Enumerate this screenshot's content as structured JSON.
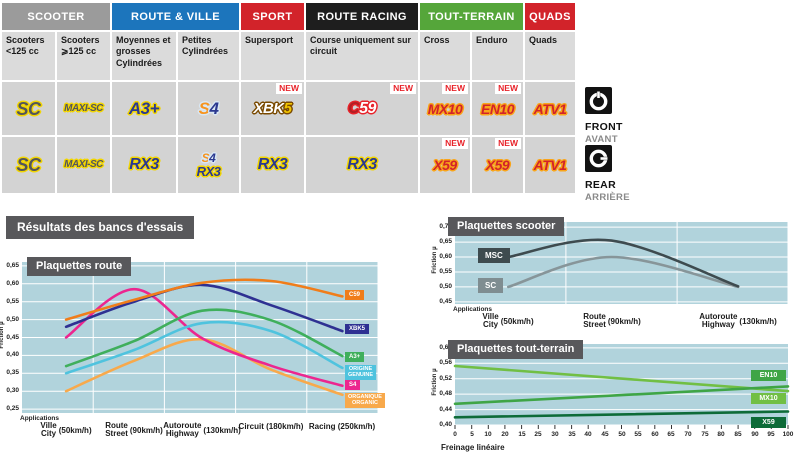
{
  "table": {
    "new_label": "NEW",
    "categories": [
      {
        "label": "SCOOTER",
        "color": "#9B9B9B"
      },
      {
        "label": "ROUTE & VILLE",
        "color": "#1C75BC"
      },
      {
        "label": "SPORT",
        "color": "#D2232A"
      },
      {
        "label": "ROUTE RACING",
        "color": "#1E1E1E"
      },
      {
        "label": "TOUT-TERRAIN",
        "color": "#55A63A"
      },
      {
        "label": "QUADS",
        "color": "#D2232A"
      }
    ],
    "subcategories": [
      "Scooters <125 cc",
      "Scooters ⩾125 cc",
      "Moyennes et grosses Cylindrées",
      "Petites Cylindrées",
      "Supersport",
      "Course uniquement sur circuit",
      "Cross",
      "Enduro",
      "Quads"
    ],
    "front_row": [
      {
        "new": false,
        "badges": [
          {
            "name": "SC",
            "size": 18,
            "outline": "#F2D500",
            "segments": [
              {
                "t": "SC",
                "c": "#54565A"
              }
            ]
          }
        ]
      },
      {
        "new": false,
        "badges": [
          {
            "name": "MAXI-SC",
            "size": 10,
            "outline": "#F2D500",
            "segments": [
              {
                "t": "MAXI-SC",
                "c": "#54565A"
              }
            ]
          }
        ]
      },
      {
        "new": false,
        "badges": [
          {
            "name": "A3+",
            "size": 17,
            "outline": "#F2D500",
            "segments": [
              {
                "t": "A3+",
                "c": "#2B3990"
              }
            ]
          }
        ]
      },
      {
        "new": false,
        "badges": [
          {
            "name": "S4",
            "size": 17,
            "outline": "#D8E7F4",
            "segments": [
              {
                "t": "S",
                "c": "#F7941E"
              },
              {
                "t": "4",
                "c": "#2B3990"
              }
            ]
          }
        ]
      },
      {
        "new": true,
        "badges": [
          {
            "name": "XBK5",
            "size": 15,
            "outline": "#7A4A00",
            "segments": [
              {
                "t": "XBK",
                "c": "#FFFFFF"
              },
              {
                "t": "5",
                "c": "#F2C500"
              }
            ]
          }
        ]
      },
      {
        "new": true,
        "badges": [
          {
            "name": "C59",
            "size": 16,
            "outline": "#E8232A",
            "segments": [
              {
                "t": "C",
                "c": "#B01F24"
              },
              {
                "t": "59",
                "c": "#FFFFFF"
              }
            ]
          }
        ]
      },
      {
        "new": true,
        "badges": [
          {
            "name": "MX10",
            "size": 14,
            "outline": "#F9A51A",
            "segments": [
              {
                "t": "MX10",
                "c": "#D2232A"
              }
            ]
          }
        ]
      },
      {
        "new": true,
        "badges": [
          {
            "name": "EN10",
            "size": 14,
            "outline": "#F9A51A",
            "segments": [
              {
                "t": "EN10",
                "c": "#D2232A"
              }
            ]
          }
        ]
      },
      {
        "new": false,
        "badges": [
          {
            "name": "ATV1",
            "size": 14,
            "outline": "#F9A51A",
            "segments": [
              {
                "t": "ATV1",
                "c": "#D2232A"
              }
            ]
          }
        ]
      }
    ],
    "rear_row": [
      {
        "new": false,
        "badges": [
          {
            "name": "SC",
            "size": 18,
            "outline": "#F2D500",
            "segments": [
              {
                "t": "SC",
                "c": "#54565A"
              }
            ]
          }
        ]
      },
      {
        "new": false,
        "badges": [
          {
            "name": "MAXI-SC",
            "size": 10,
            "outline": "#F2D500",
            "segments": [
              {
                "t": "MAXI-SC",
                "c": "#54565A"
              }
            ]
          }
        ]
      },
      {
        "new": false,
        "badges": [
          {
            "name": "RX3",
            "size": 16,
            "outline": "#F2D500",
            "segments": [
              {
                "t": "RX3",
                "c": "#2B3990"
              }
            ]
          }
        ]
      },
      {
        "new": false,
        "badges": [
          {
            "name": "S4",
            "size": 12,
            "outline": "#D8E7F4",
            "segments": [
              {
                "t": "S",
                "c": "#F7941E"
              },
              {
                "t": "4",
                "c": "#2B3990"
              }
            ]
          },
          {
            "name": "RX3",
            "size": 13,
            "outline": "#F2D500",
            "segments": [
              {
                "t": "RX3",
                "c": "#2B3990"
              }
            ]
          }
        ]
      },
      {
        "new": false,
        "badges": [
          {
            "name": "RX3",
            "size": 16,
            "outline": "#F2D500",
            "segments": [
              {
                "t": "RX3",
                "c": "#2B3990"
              }
            ]
          }
        ]
      },
      {
        "new": false,
        "badges": [
          {
            "name": "RX3",
            "size": 16,
            "outline": "#F2D500",
            "segments": [
              {
                "t": "RX3",
                "c": "#2B3990"
              }
            ]
          }
        ]
      },
      {
        "new": true,
        "badges": [
          {
            "name": "X59",
            "size": 14,
            "outline": "#F9A51A",
            "segments": [
              {
                "t": "X59",
                "c": "#D2232A"
              }
            ]
          }
        ]
      },
      {
        "new": true,
        "badges": [
          {
            "name": "X59",
            "size": 14,
            "outline": "#F9A51A",
            "segments": [
              {
                "t": "X59",
                "c": "#D2232A"
              }
            ]
          }
        ]
      },
      {
        "new": false,
        "badges": [
          {
            "name": "ATV1",
            "size": 14,
            "outline": "#F9A51A",
            "segments": [
              {
                "t": "ATV1",
                "c": "#D2232A"
              }
            ]
          }
        ]
      }
    ],
    "front": {
      "label": "FRONT",
      "sub": "AVANT"
    },
    "rear": {
      "label": "REAR",
      "sub": "ARRIÈRE"
    }
  },
  "results_title": "Résultats des bancs d'essais",
  "chart_data": [
    {
      "type": "line",
      "title": "Plaquettes route",
      "ylabel": "Friction µ",
      "x_axis_title": "Applications",
      "plot_bg": "#B1D3DC",
      "ylim": [
        0.239,
        0.661
      ],
      "yticks": [
        {
          "v": 0.65,
          "label": "0,65"
        },
        {
          "v": 0.6,
          "label": "0,60"
        },
        {
          "v": 0.55,
          "label": "0,55"
        },
        {
          "v": 0.5,
          "label": "0,50"
        },
        {
          "v": 0.45,
          "label": "0,45"
        },
        {
          "v": 0.4,
          "label": "0,40"
        },
        {
          "v": 0.35,
          "label": "0,35"
        },
        {
          "v": 0.3,
          "label": "0,30"
        },
        {
          "v": 0.25,
          "label": "0,25"
        }
      ],
      "categories": [
        {
          "fr": "Ville",
          "en": "City",
          "speed": "(50km/h)"
        },
        {
          "fr": "Route",
          "en": "Street",
          "speed": "(90km/h)"
        },
        {
          "fr": "Autoroute",
          "en": "Highway",
          "speed": "(130km/h)"
        },
        {
          "fr": "Circuit",
          "en": "",
          "speed": "(180km/h)"
        },
        {
          "fr": "Racing",
          "en": "",
          "speed": "(250km/h)"
        }
      ],
      "series": [
        {
          "name": "C59",
          "color": "#F07D1A",
          "values": [
            0.5,
            0.555,
            0.603,
            0.608,
            0.565
          ],
          "legend": {
            "lines": [
              "C59"
            ],
            "bg": "#F07D1A",
            "y": 0.565
          }
        },
        {
          "name": "XBK5",
          "color": "#2E3192",
          "values": [
            0.48,
            0.55,
            0.597,
            0.54,
            0.468
          ],
          "legend": {
            "lines": [
              "XBK5"
            ],
            "bg": "#2E3192",
            "y": 0.471
          }
        },
        {
          "name": "A3+",
          "color": "#3FAF5C",
          "values": [
            0.37,
            0.44,
            0.525,
            0.498,
            0.398
          ],
          "legend": {
            "lines": [
              "A3+"
            ],
            "bg": "#3FAF5C",
            "y": 0.392
          }
        },
        {
          "name": "ORIGINE",
          "color": "#4FC3DE",
          "values": [
            0.35,
            0.415,
            0.49,
            0.468,
            0.365
          ],
          "legend": {
            "lines": [
              "ORIGINE",
              "GENUINE"
            ],
            "bg": "#4FC3DE",
            "y": 0.35
          }
        },
        {
          "name": "S4",
          "color": "#EC268F",
          "values": [
            0.45,
            0.585,
            0.448,
            0.371,
            0.315
          ],
          "legend": {
            "lines": [
              "S4"
            ],
            "bg": "#EC268F",
            "y": 0.314
          }
        },
        {
          "name": "ORGANIQUE",
          "color": "#F8A94B",
          "values": [
            0.3,
            0.385,
            0.445,
            0.36,
            0.29
          ],
          "legend": {
            "lines": [
              "ORGANIQUE",
              "ORGANIC"
            ],
            "bg": "#F8A94B",
            "y": 0.272
          }
        }
      ]
    },
    {
      "type": "line",
      "title": "Plaquettes scooter",
      "ylabel": "Friction µ",
      "x_axis_title": "Applications",
      "plot_bg": "#B1D3DC",
      "ylim": [
        0.443,
        0.717
      ],
      "yticks": [
        {
          "v": 0.7,
          "label": "0,70"
        },
        {
          "v": 0.65,
          "label": "0,65"
        },
        {
          "v": 0.6,
          "label": "0,60"
        },
        {
          "v": 0.55,
          "label": "0,55"
        },
        {
          "v": 0.5,
          "label": "0,50"
        },
        {
          "v": 0.45,
          "label": "0,45"
        }
      ],
      "categories": [
        {
          "fr": "Ville",
          "en": "City",
          "speed": "(50km/h)"
        },
        {
          "fr": "Route",
          "en": "Street",
          "speed": "(90km/h)"
        },
        {
          "fr": "Autoroute",
          "en": "Highway",
          "speed": "(130km/h)"
        }
      ],
      "series": [
        {
          "name": "MSC",
          "color": "#3E4B4F",
          "values": [
            0.6,
            0.655,
            0.502
          ],
          "legend": {
            "lines": [
              "MSC"
            ],
            "bg": "#3E4B4F",
            "y": 0.6
          }
        },
        {
          "name": "SC",
          "color": "#879599",
          "values": [
            0.5,
            0.6,
            0.5
          ],
          "legend": {
            "lines": [
              "SC"
            ],
            "bg": "#7F8D91",
            "y": 0.5
          }
        }
      ]
    },
    {
      "type": "line",
      "title": "Plaquettes tout-terrain",
      "ylabel": "Friction µ",
      "xlabel": "Freinage linéaire",
      "plot_bg": "#B1D3DC",
      "ylim": [
        0.4,
        0.61
      ],
      "xlim": [
        0,
        100
      ],
      "yticks": [
        {
          "v": 0.6,
          "label": "0,60"
        },
        {
          "v": 0.56,
          "label": "0,56"
        },
        {
          "v": 0.52,
          "label": "0,52"
        },
        {
          "v": 0.48,
          "label": "0,48"
        },
        {
          "v": 0.44,
          "label": "0,44"
        },
        {
          "v": 0.4,
          "label": "0,40"
        }
      ],
      "xtick_labels": [
        "0",
        "5",
        "10",
        "20",
        "15",
        "25",
        "30",
        "35",
        "40",
        "45",
        "50",
        "55",
        "60",
        "65",
        "70",
        "75",
        "80",
        "85",
        "90",
        "95",
        "100"
      ],
      "series": [
        {
          "name": "EN10",
          "color": "#3FA546",
          "values": [
            [
              0,
              0.455
            ],
            [
              100,
              0.5
            ]
          ],
          "legend": {
            "lines": [
              "EN10"
            ],
            "bg": "#3FA546",
            "y": 0.525
          }
        },
        {
          "name": "MX10",
          "color": "#71BF44",
          "values": [
            [
              0,
              0.553
            ],
            [
              100,
              0.488
            ]
          ],
          "legend": {
            "lines": [
              "MX10"
            ],
            "bg": "#71BF44",
            "y": 0.465
          }
        },
        {
          "name": "X59",
          "color": "#0D6B38",
          "values": [
            [
              0,
              0.42
            ],
            [
              100,
              0.435
            ]
          ],
          "legend": {
            "lines": [
              "X59"
            ],
            "bg": "#0D6B38",
            "y": 0.402
          }
        }
      ]
    }
  ]
}
